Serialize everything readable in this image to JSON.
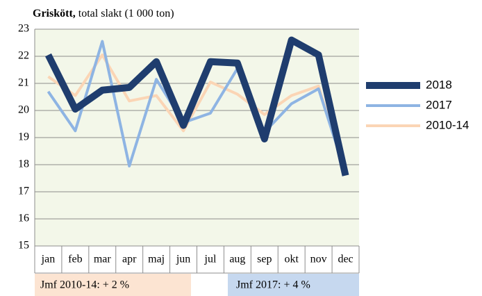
{
  "chart_data": {
    "type": "line",
    "title": "Griskött,",
    "subtitle": "total slakt (1 000 ton)",
    "categories": [
      "jan",
      "feb",
      "mar",
      "apr",
      "maj",
      "jun",
      "jul",
      "aug",
      "sep",
      "okt",
      "nov",
      "dec"
    ],
    "series": [
      {
        "name": "2018",
        "color": "#1f3d6e",
        "values": [
          22.05,
          20.05,
          20.75,
          20.85,
          21.8,
          19.45,
          21.8,
          21.75,
          18.95,
          22.6,
          22.05,
          17.6
        ]
      },
      {
        "name": "2017",
        "color": "#8eb4e3",
        "values": [
          20.7,
          19.25,
          22.55,
          17.95,
          21.15,
          19.55,
          19.9,
          21.55,
          19.2,
          20.25,
          20.8,
          17.7
        ]
      },
      {
        "name": "2010-14",
        "color": "#fbd5b5",
        "values": [
          21.25,
          20.55,
          22.05,
          20.35,
          20.55,
          19.25,
          21.05,
          20.6,
          19.85,
          20.55,
          20.9,
          17.65
        ]
      }
    ],
    "ylim": [
      15,
      23
    ],
    "yticks": [
      15,
      16,
      17,
      18,
      19,
      20,
      21,
      22,
      23
    ],
    "grid": true,
    "legend": "right",
    "annotations": [
      "Jmf 2010-14: + 2 %",
      "Jmf 2017: + 4 %"
    ]
  }
}
